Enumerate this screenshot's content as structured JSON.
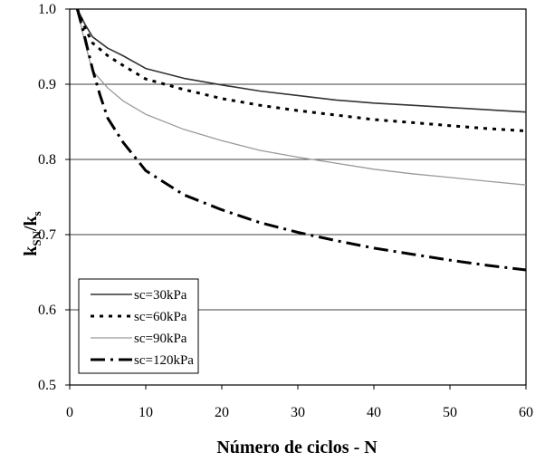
{
  "chart_data": {
    "type": "line",
    "xlabel": "Número de ciclos - N",
    "ylabel_main": "k",
    "ylabel_sub1": "SN",
    "ylabel_mid": "/k",
    "ylabel_sub2": "s",
    "xlim": [
      0,
      60
    ],
    "ylim": [
      0.5,
      1.0
    ],
    "x_ticks": [
      0,
      10,
      20,
      30,
      40,
      50,
      60
    ],
    "y_ticks": [
      0.5,
      0.6,
      0.7,
      0.8,
      0.9,
      1.0
    ],
    "y_tick_labels": [
      "0.5",
      "0.6",
      "0.7",
      "0.8",
      "0.9",
      "1.0"
    ],
    "grid": "horizontal",
    "legend_position": "bottom-left",
    "series": [
      {
        "name": "sc=30kPa",
        "style": "solid-dark",
        "x": [
          1,
          2,
          3,
          5,
          7,
          10,
          15,
          20,
          25,
          30,
          35,
          40,
          45,
          50,
          55,
          60
        ],
        "y": [
          1.0,
          0.98,
          0.963,
          0.948,
          0.938,
          0.921,
          0.908,
          0.899,
          0.891,
          0.885,
          0.879,
          0.875,
          0.872,
          0.869,
          0.866,
          0.863
        ]
      },
      {
        "name": "sc=60kPa",
        "style": "dotted",
        "x": [
          1,
          2,
          3,
          5,
          7,
          10,
          15,
          20,
          25,
          30,
          35,
          40,
          45,
          50,
          55,
          60
        ],
        "y": [
          1.0,
          0.975,
          0.955,
          0.938,
          0.925,
          0.907,
          0.893,
          0.881,
          0.872,
          0.865,
          0.859,
          0.853,
          0.849,
          0.845,
          0.841,
          0.838
        ]
      },
      {
        "name": "sc=90kPa",
        "style": "solid-light",
        "x": [
          1,
          2,
          3,
          5,
          7,
          10,
          15,
          20,
          25,
          30,
          35,
          40,
          45,
          50,
          55,
          60
        ],
        "y": [
          1.0,
          0.955,
          0.918,
          0.895,
          0.878,
          0.86,
          0.84,
          0.825,
          0.812,
          0.803,
          0.795,
          0.787,
          0.781,
          0.776,
          0.771,
          0.766
        ]
      },
      {
        "name": "sc=120kPa",
        "style": "dash-dot",
        "x": [
          1,
          2,
          3,
          4,
          5,
          7,
          10,
          15,
          20,
          25,
          30,
          35,
          40,
          45,
          50,
          55,
          60
        ],
        "y": [
          1.0,
          0.962,
          0.92,
          0.885,
          0.855,
          0.823,
          0.785,
          0.753,
          0.733,
          0.716,
          0.703,
          0.692,
          0.682,
          0.674,
          0.666,
          0.659,
          0.653
        ]
      }
    ]
  }
}
